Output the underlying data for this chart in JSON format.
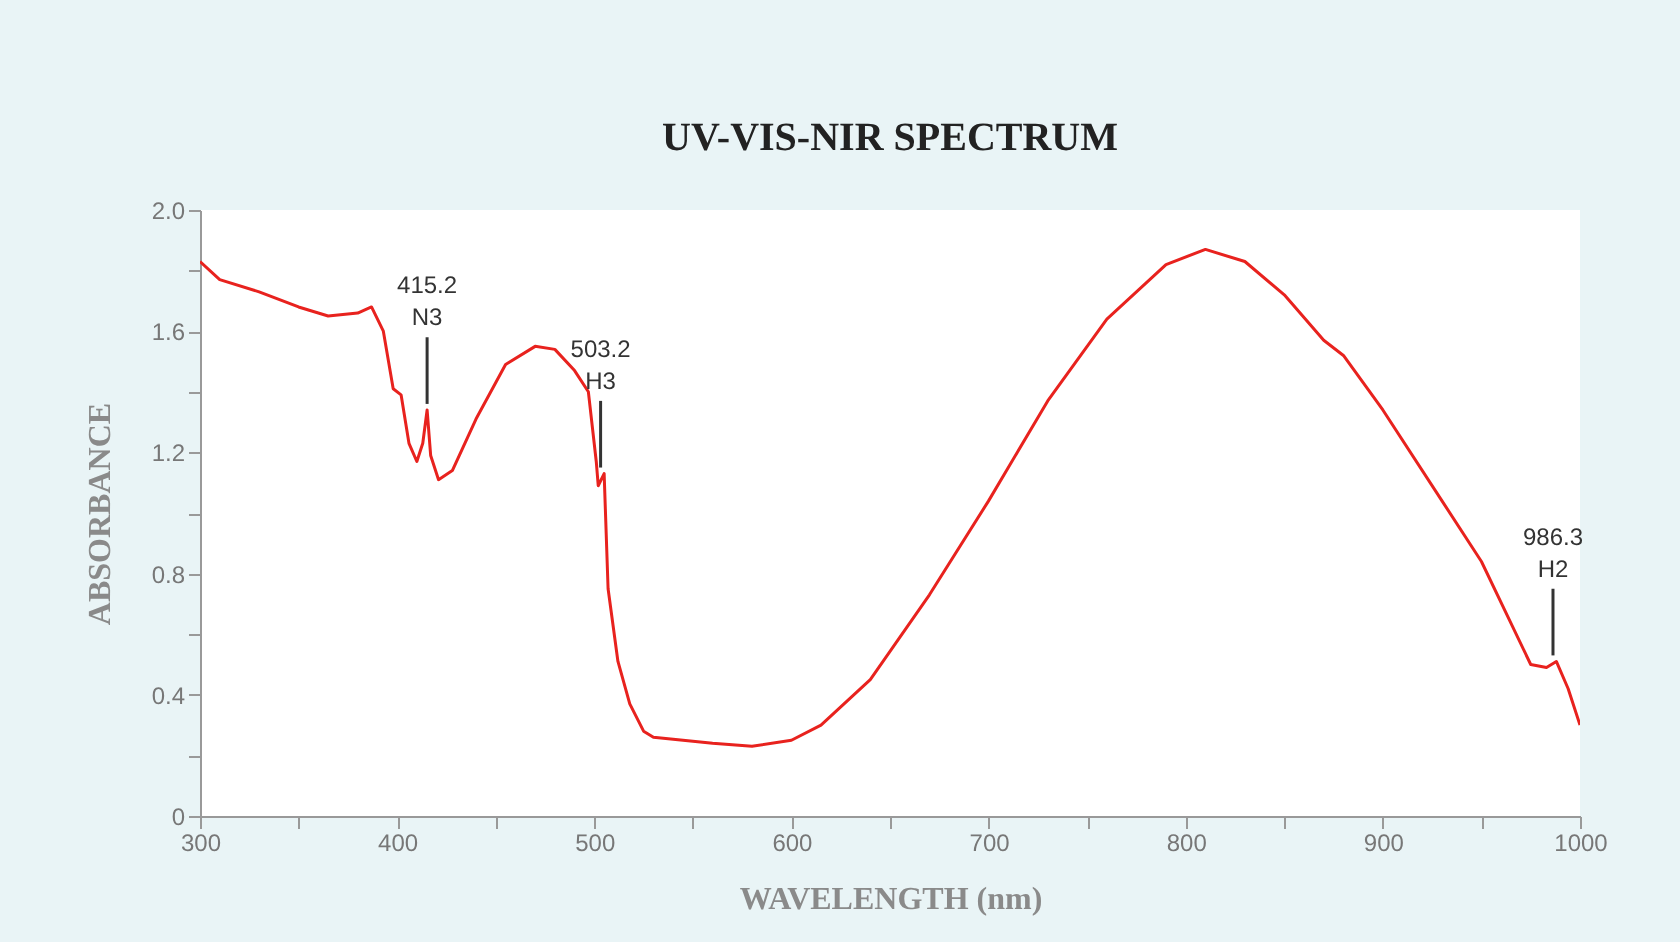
{
  "chart_data": {
    "type": "line",
    "title": "UV-VIS-NIR SPECTRUM",
    "xlabel": "WAVELENGTH (nm)",
    "ylabel": "ABSORBANCE",
    "x": [
      300,
      310,
      330,
      350,
      365,
      380,
      387,
      393,
      398,
      402,
      406,
      410,
      413,
      415.2,
      417,
      421,
      428,
      440,
      455,
      470,
      480,
      490,
      497,
      501,
      502,
      505,
      507,
      512,
      518,
      525,
      530,
      560,
      580,
      600,
      615,
      640,
      670,
      700,
      730,
      760,
      790,
      810,
      830,
      850,
      870,
      880,
      900,
      930,
      950,
      975,
      983,
      988,
      994,
      1000
    ],
    "series": [
      {
        "color": "#e8221e",
        "values": [
          1.83,
          1.77,
          1.73,
          1.68,
          1.65,
          1.66,
          1.68,
          1.6,
          1.41,
          1.39,
          1.23,
          1.17,
          1.23,
          1.34,
          1.19,
          1.11,
          1.14,
          1.31,
          1.49,
          1.55,
          1.54,
          1.47,
          1.4,
          1.17,
          1.09,
          1.13,
          0.75,
          0.51,
          0.37,
          0.28,
          0.26,
          0.24,
          0.23,
          0.25,
          0.3,
          0.45,
          0.73,
          1.04,
          1.37,
          1.64,
          1.82,
          1.87,
          1.83,
          1.72,
          1.57,
          1.52,
          1.34,
          1.04,
          0.84,
          0.5,
          0.49,
          0.51,
          0.42,
          0.3
        ]
      }
    ],
    "annotations": [
      {
        "text": "415.2 N3",
        "x": 415.2,
        "y": 1.34
      },
      {
        "text": "503.2 H3",
        "x": 503.2,
        "y": 1.13
      },
      {
        "text": "986.3 H2",
        "x": 986.3,
        "y": 0.51
      }
    ],
    "xlim": [
      300,
      1000
    ],
    "ylim": [
      0,
      2.0
    ],
    "xticks": [
      300,
      {
        "value": 350,
        "label": null
      },
      400,
      {
        "value": 450,
        "label": null
      },
      500,
      {
        "value": 550,
        "label": null
      },
      600,
      {
        "value": 650,
        "label": null
      },
      700,
      {
        "value": 750,
        "label": null
      },
      800,
      {
        "value": 850,
        "label": null
      },
      900,
      {
        "value": 950,
        "label": null
      },
      1000
    ],
    "yticks": [
      0,
      {
        "value": 0.2,
        "label": null
      },
      0.4,
      {
        "value": 0.6,
        "label": null
      },
      0.8,
      {
        "value": 1.0,
        "label": null
      },
      1.2,
      {
        "value": 1.4,
        "label": null
      },
      1.6,
      {
        "value": 1.8,
        "label": null
      },
      {
        "value": 2.0,
        "label": "2.0"
      }
    ],
    "grid": false,
    "marker": "none",
    "line_style": "solid"
  }
}
